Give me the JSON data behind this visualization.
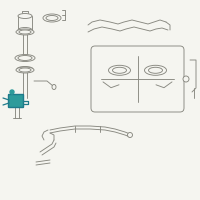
{
  "bg_color": "#f5f5f0",
  "line_color": "#888880",
  "highlight_color": "#2E9B9B",
  "highlight_color2": "#1E7A8A",
  "fig_width": 2.0,
  "fig_height": 2.0,
  "dpi": 100
}
